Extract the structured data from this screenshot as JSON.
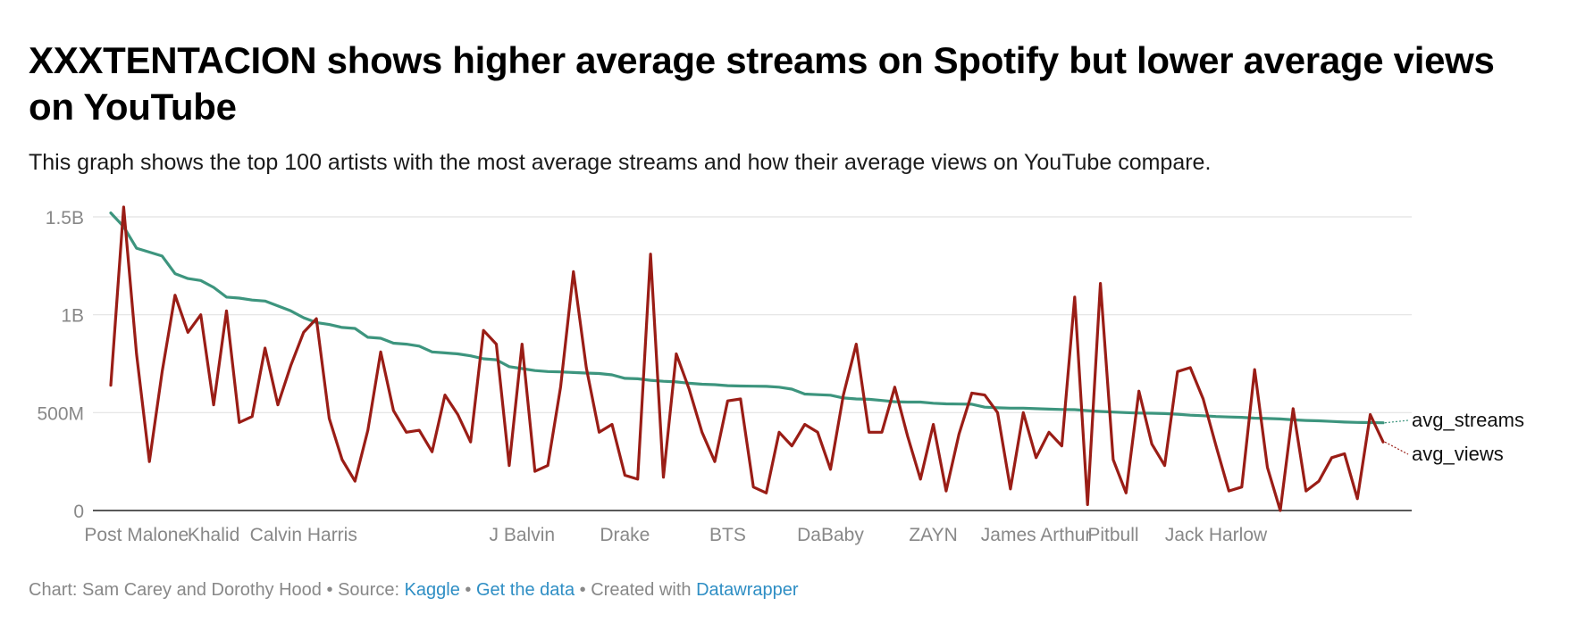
{
  "title": "XXXTENTACION shows higher average streams on Spotify but lower average views on YouTube",
  "subtitle": "This graph shows the top 100 artists with the most average streams and how their average views on YouTube compare.",
  "footer": {
    "prefix": "Chart: Sam Carey and Dorothy Hood",
    "sep": "•",
    "source_label": "Source:",
    "source_link": "Kaggle",
    "data_link": "Get the data",
    "created_label": "Created with",
    "created_link": "Datawrapper"
  },
  "colors": {
    "avg_streams": "#3d957e",
    "avg_views": "#9a1d16",
    "grid": "#e2e2e2",
    "axis": "#222222",
    "tick_text": "#888888",
    "footer_link": "#2e8ec4"
  },
  "chart_data": {
    "type": "line",
    "title": "XXXTENTACION shows higher average streams on Spotify but lower average views on YouTube",
    "ylim": [
      0,
      1500000000
    ],
    "yticks": [
      0,
      500000000,
      1000000000,
      1500000000
    ],
    "ytick_labels": [
      "0",
      "500M",
      "1B",
      "1.5B"
    ],
    "grid": true,
    "legend": "right (direct labels at line ends)",
    "x_labels": [
      {
        "index": 2,
        "label": "Post Malone"
      },
      {
        "index": 8,
        "label": "Khalid"
      },
      {
        "index": 15,
        "label": "Calvin Harris"
      },
      {
        "index": 32,
        "label": "J Balvin"
      },
      {
        "index": 40,
        "label": "Drake"
      },
      {
        "index": 48,
        "label": "BTS"
      },
      {
        "index": 56,
        "label": "DaBaby"
      },
      {
        "index": 64,
        "label": "ZAYN"
      },
      {
        "index": 72,
        "label": "James Arthur"
      },
      {
        "index": 78,
        "label": "Pitbull"
      },
      {
        "index": 86,
        "label": "Jack Harlow"
      }
    ],
    "series": [
      {
        "name": "avg_streams",
        "values": [
          1520000000,
          1450000000,
          1340000000,
          1320000000,
          1300000000,
          1210000000,
          1185000000,
          1175000000,
          1140000000,
          1090000000,
          1085000000,
          1075000000,
          1070000000,
          1045000000,
          1020000000,
          985000000,
          960000000,
          950000000,
          935000000,
          930000000,
          885000000,
          880000000,
          855000000,
          850000000,
          840000000,
          810000000,
          805000000,
          800000000,
          790000000,
          775000000,
          770000000,
          735000000,
          725000000,
          715000000,
          710000000,
          708000000,
          705000000,
          702000000,
          700000000,
          693000000,
          675000000,
          673000000,
          665000000,
          660000000,
          657000000,
          650000000,
          645000000,
          643000000,
          638000000,
          636000000,
          635000000,
          634000000,
          630000000,
          620000000,
          595000000,
          592000000,
          589000000,
          575000000,
          570000000,
          568000000,
          562000000,
          556000000,
          554000000,
          554000000,
          548000000,
          545000000,
          544000000,
          543000000,
          528000000,
          525000000,
          523000000,
          523000000,
          520000000,
          518000000,
          516000000,
          515000000,
          510000000,
          506000000,
          503000000,
          500000000,
          498000000,
          497000000,
          495000000,
          492000000,
          487000000,
          484000000,
          480000000,
          478000000,
          476000000,
          472000000,
          470000000,
          468000000,
          463000000,
          460000000,
          458000000,
          455000000,
          452000000,
          450000000,
          449000000,
          448000000
        ],
        "label": "avg_streams"
      },
      {
        "name": "avg_views",
        "values": [
          640000000,
          1550000000,
          800000000,
          250000000,
          710000000,
          1100000000,
          910000000,
          1000000000,
          540000000,
          1020000000,
          450000000,
          480000000,
          830000000,
          540000000,
          740000000,
          910000000,
          980000000,
          470000000,
          260000000,
          150000000,
          410000000,
          810000000,
          510000000,
          400000000,
          410000000,
          300000000,
          590000000,
          490000000,
          350000000,
          920000000,
          850000000,
          230000000,
          850000000,
          200000000,
          230000000,
          630000000,
          1220000000,
          730000000,
          400000000,
          440000000,
          180000000,
          160000000,
          1310000000,
          170000000,
          800000000,
          620000000,
          400000000,
          250000000,
          560000000,
          570000000,
          120000000,
          90000000,
          400000000,
          330000000,
          440000000,
          400000000,
          210000000,
          590000000,
          850000000,
          400000000,
          400000000,
          630000000,
          380000000,
          160000000,
          440000000,
          100000000,
          390000000,
          600000000,
          590000000,
          500000000,
          110000000,
          500000000,
          270000000,
          400000000,
          330000000,
          1090000000,
          30000000,
          1160000000,
          260000000,
          90000000,
          610000000,
          340000000,
          230000000,
          710000000,
          730000000,
          570000000,
          330000000,
          100000000,
          120000000,
          720000000,
          220000000,
          0,
          520000000,
          100000000,
          150000000,
          270000000,
          290000000,
          60000000,
          490000000,
          350000000
        ],
        "label": "avg_views"
      }
    ]
  }
}
